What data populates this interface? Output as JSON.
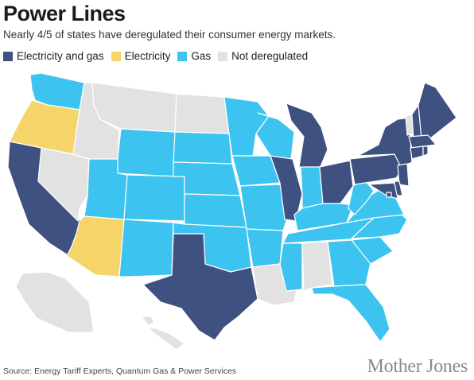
{
  "title": "Power Lines",
  "subtitle": "Nearly 4/5 of states have deregulated their consumer energy markets.",
  "legend": [
    {
      "key": "both",
      "label": "Electricity and gas",
      "color": "#3f5180"
    },
    {
      "key": "elec",
      "label": "Electricity",
      "color": "#f5d56a"
    },
    {
      "key": "gas",
      "label": "Gas",
      "color": "#3cc3ef"
    },
    {
      "key": "none",
      "label": "Not deregulated",
      "color": "#e2e2e2"
    }
  ],
  "map": {
    "states": [
      {
        "name": "WA",
        "status": "gas"
      },
      {
        "name": "OR",
        "status": "elec"
      },
      {
        "name": "CA",
        "status": "both"
      },
      {
        "name": "NV",
        "status": "none"
      },
      {
        "name": "ID",
        "status": "none"
      },
      {
        "name": "MT",
        "status": "none"
      },
      {
        "name": "WY",
        "status": "gas"
      },
      {
        "name": "UT",
        "status": "gas"
      },
      {
        "name": "AZ",
        "status": "elec"
      },
      {
        "name": "CO",
        "status": "gas"
      },
      {
        "name": "NM",
        "status": "gas"
      },
      {
        "name": "ND",
        "status": "none"
      },
      {
        "name": "SD",
        "status": "gas"
      },
      {
        "name": "NE",
        "status": "gas"
      },
      {
        "name": "KS",
        "status": "gas"
      },
      {
        "name": "OK",
        "status": "gas"
      },
      {
        "name": "TX",
        "status": "both"
      },
      {
        "name": "MN",
        "status": "gas"
      },
      {
        "name": "IA",
        "status": "gas"
      },
      {
        "name": "MO",
        "status": "gas"
      },
      {
        "name": "AR",
        "status": "gas"
      },
      {
        "name": "LA",
        "status": "none"
      },
      {
        "name": "WI",
        "status": "gas"
      },
      {
        "name": "IL",
        "status": "both"
      },
      {
        "name": "MI",
        "status": "both"
      },
      {
        "name": "IN",
        "status": "gas"
      },
      {
        "name": "OH",
        "status": "both"
      },
      {
        "name": "KY",
        "status": "gas"
      },
      {
        "name": "TN",
        "status": "gas"
      },
      {
        "name": "MS",
        "status": "gas"
      },
      {
        "name": "AL",
        "status": "none"
      },
      {
        "name": "GA",
        "status": "gas"
      },
      {
        "name": "FL",
        "status": "gas"
      },
      {
        "name": "SC",
        "status": "gas"
      },
      {
        "name": "NC",
        "status": "gas"
      },
      {
        "name": "VA",
        "status": "gas"
      },
      {
        "name": "WV",
        "status": "gas"
      },
      {
        "name": "PA",
        "status": "both"
      },
      {
        "name": "NY",
        "status": "both"
      },
      {
        "name": "VT",
        "status": "none"
      },
      {
        "name": "NH",
        "status": "both"
      },
      {
        "name": "ME",
        "status": "both"
      },
      {
        "name": "MA",
        "status": "both"
      },
      {
        "name": "CT",
        "status": "both"
      },
      {
        "name": "RI",
        "status": "both"
      },
      {
        "name": "NJ",
        "status": "both"
      },
      {
        "name": "DE",
        "status": "both"
      },
      {
        "name": "MD",
        "status": "both"
      },
      {
        "name": "DC",
        "status": "both"
      },
      {
        "name": "AK",
        "status": "none"
      },
      {
        "name": "HI",
        "status": "none"
      }
    ]
  },
  "source": "Source: Energy Tariff Experts, Quantum Gas & Power Services",
  "logo": "Mother Jones"
}
